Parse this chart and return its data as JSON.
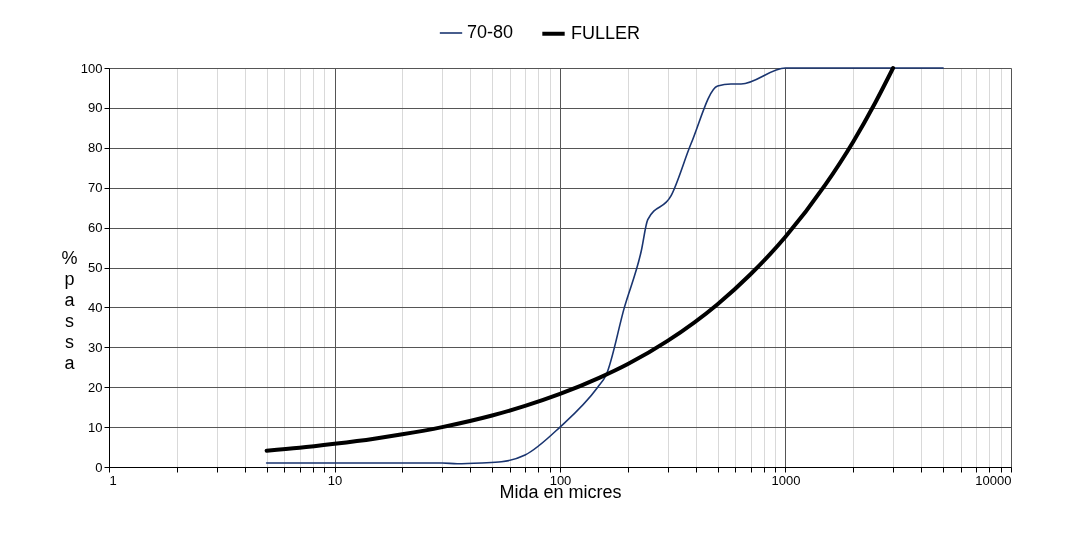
{
  "chart_data": {
    "type": "line",
    "xlabel": "Mida en micres",
    "ylabel": "%passa",
    "log": "x",
    "grid": true,
    "legend": "top",
    "marker": "none",
    "line_style": "solid",
    "xlim": [
      1,
      10000
    ],
    "ylim": [
      0,
      100
    ],
    "xticks": [
      1,
      {
        "value": 2,
        "label": null
      },
      {
        "value": 3,
        "label": null
      },
      {
        "value": 4,
        "label": null
      },
      {
        "value": 5,
        "label": null
      },
      {
        "value": 6,
        "label": null
      },
      {
        "value": 7,
        "label": null
      },
      {
        "value": 8,
        "label": null
      },
      {
        "value": 9,
        "label": null
      },
      10,
      {
        "value": 20,
        "label": null
      },
      {
        "value": 30,
        "label": null
      },
      {
        "value": 40,
        "label": null
      },
      {
        "value": 50,
        "label": null
      },
      {
        "value": 60,
        "label": null
      },
      {
        "value": 70,
        "label": null
      },
      {
        "value": 80,
        "label": null
      },
      {
        "value": 90,
        "label": null
      },
      100,
      {
        "value": 200,
        "label": null
      },
      {
        "value": 300,
        "label": null
      },
      {
        "value": 400,
        "label": null
      },
      {
        "value": 500,
        "label": null
      },
      {
        "value": 600,
        "label": null
      },
      {
        "value": 700,
        "label": null
      },
      {
        "value": 800,
        "label": null
      },
      {
        "value": 900,
        "label": null
      },
      1000,
      {
        "value": 2000,
        "label": null
      },
      {
        "value": 3000,
        "label": null
      },
      {
        "value": 4000,
        "label": null
      },
      {
        "value": 5000,
        "label": null
      },
      {
        "value": 6000,
        "label": null
      },
      {
        "value": 7000,
        "label": null
      },
      {
        "value": 8000,
        "label": null
      },
      {
        "value": 9000,
        "label": null
      },
      10000
    ],
    "yticks": [
      0,
      10,
      20,
      30,
      40,
      50,
      60,
      70,
      80,
      90,
      100
    ],
    "series": [
      {
        "name": "70-80",
        "color": "#1a3570",
        "x": [
          5,
          10,
          20,
          30,
          35,
          45,
          55,
          70,
          100,
          147,
          160,
          193,
          229,
          245,
          311,
          381,
          500,
          573,
          635,
          1000,
          2000,
          5000
        ],
        "values": [
          1,
          1,
          1,
          1,
          0.8,
          1,
          1.3,
          3,
          10,
          20,
          23,
          40,
          54,
          62,
          68,
          81,
          95.5,
          96,
          96,
          100,
          100,
          100
        ]
      },
      {
        "name": "FULLER",
        "color": "#000000",
        "x": [
          5,
          7,
          10,
          15,
          20,
          30,
          50,
          70,
          100,
          150,
          200,
          300,
          500,
          700,
          1000,
          1500,
          2000,
          2500,
          3000
        ],
        "values": [
          4.1,
          4.8,
          5.8,
          7.1,
          8.2,
          10,
          12.9,
          15.3,
          18.3,
          22.4,
          25.8,
          31.6,
          40.8,
          48.3,
          57.7,
          70.7,
          81.6,
          91.3,
          100
        ]
      }
    ]
  }
}
